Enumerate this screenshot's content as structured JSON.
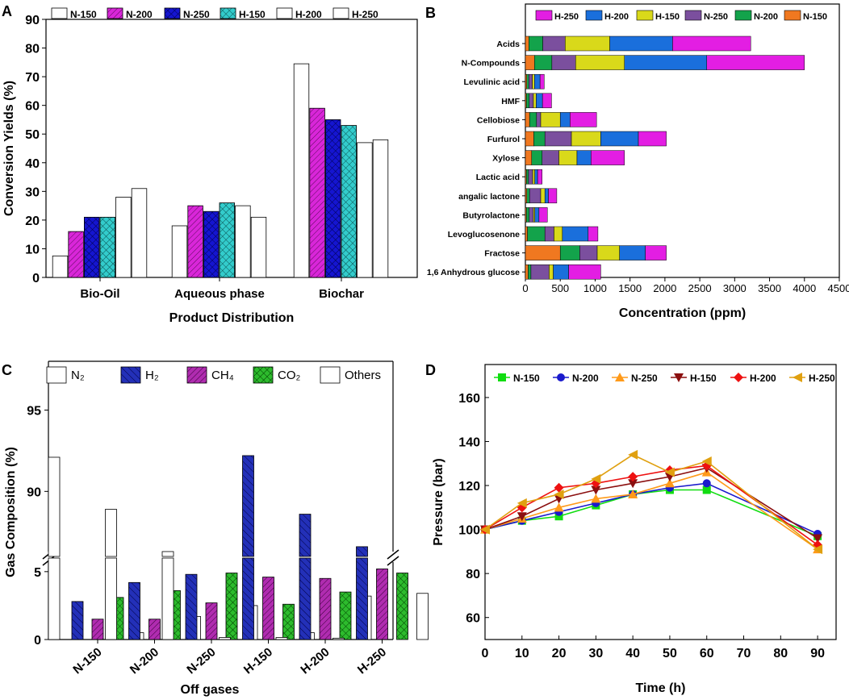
{
  "panel_labels": {
    "a": "A",
    "b": "B",
    "c": "C",
    "d": "D"
  },
  "colors": {
    "magenta": "#d926d9",
    "blue": "#1515d0",
    "teal": "#33cccc",
    "white": "#ffffff",
    "h250": "#e31ee3",
    "h200": "#1a6fdc",
    "h150": "#d9d91a",
    "n250": "#7b4f9e",
    "n200": "#13a34b",
    "n150": "#f07820",
    "N2": "#ffffff",
    "H2": "#2330b8",
    "CH4": "#b02cb0",
    "CO2": "#2dbb2d",
    "Others": "#ffffff",
    "line_n150": "#11dd11",
    "line_n200": "#1a1acc",
    "line_n250": "#ff9a1a",
    "line_h150": "#8b0f0f",
    "line_h200": "#ee1111",
    "line_h250": "#e0a010"
  },
  "chart_data": [
    {
      "panel": "A",
      "type": "bar",
      "title": "",
      "xlabel": "Product Distribution",
      "ylabel": "Conversion Yields (%)",
      "ylim": [
        0,
        90
      ],
      "yticks": [
        "0",
        "10",
        "20",
        "30",
        "40",
        "50",
        "60",
        "70",
        "80",
        "90"
      ],
      "categories": [
        "Bio-Oil",
        "Aqueous phase",
        "Biochar"
      ],
      "series": [
        {
          "name": "N-150",
          "values": [
            7.5,
            18,
            74.5
          ]
        },
        {
          "name": "N-200",
          "values": [
            16,
            25,
            59
          ]
        },
        {
          "name": "N-250",
          "values": [
            21,
            23,
            55
          ]
        },
        {
          "name": "H-150",
          "values": [
            21,
            26,
            53
          ]
        },
        {
          "name": "H-200",
          "values": [
            28,
            25,
            47
          ]
        },
        {
          "name": "H-250",
          "values": [
            31,
            21,
            48
          ]
        }
      ]
    },
    {
      "panel": "B",
      "type": "bar",
      "orientation": "horizontal-stacked",
      "xlabel": "Concentration (ppm)",
      "ylabel": "",
      "xlim": [
        0,
        4500
      ],
      "xticks": [
        "0",
        "500",
        "1000",
        "1500",
        "2000",
        "2500",
        "3000",
        "3500",
        "4000",
        "4500"
      ],
      "categories": [
        "Acids",
        "N-Compounds",
        "Levulinic acid",
        "HMF",
        "Cellobiose",
        "Furfurol",
        "Xylose",
        "Lactic acid",
        "angalic lactone",
        "Butyrolactone",
        "Levoglucosenone",
        "Fractose",
        "1,6 Anhydrous glucose"
      ],
      "legend": [
        "H-250",
        "H-200",
        "H-150",
        "N-250",
        "N-200",
        "N-150"
      ],
      "series": [
        {
          "name": "N-150",
          "values": [
            50,
            130,
            20,
            15,
            60,
            120,
            90,
            15,
            20,
            15,
            30,
            500,
            40
          ]
        },
        {
          "name": "N-200",
          "values": [
            200,
            250,
            30,
            40,
            100,
            160,
            150,
            30,
            40,
            40,
            250,
            280,
            40
          ]
        },
        {
          "name": "N-250",
          "values": [
            320,
            340,
            50,
            60,
            60,
            380,
            240,
            60,
            160,
            60,
            130,
            250,
            260
          ]
        },
        {
          "name": "H-150",
          "values": [
            640,
            700,
            30,
            40,
            280,
            420,
            260,
            30,
            60,
            20,
            120,
            320,
            60
          ]
        },
        {
          "name": "H-200",
          "values": [
            900,
            1180,
            80,
            90,
            140,
            540,
            200,
            40,
            50,
            60,
            370,
            370,
            220
          ]
        },
        {
          "name": "H-250",
          "values": [
            1120,
            1400,
            60,
            130,
            380,
            400,
            480,
            65,
            120,
            120,
            140,
            300,
            460
          ]
        }
      ]
    },
    {
      "panel": "C",
      "type": "bar",
      "xlabel": "Off gases",
      "ylabel": "Gas Composition (%)",
      "axis_break": {
        "lower": [
          0,
          6
        ],
        "upper": [
          86,
          98
        ]
      },
      "yticks_lower": [
        "0",
        "5"
      ],
      "yticks_upper": [
        "90",
        "95"
      ],
      "categories": [
        "N-150",
        "N-200",
        "N-250",
        "H-150",
        "H-200",
        "H-250"
      ],
      "series": [
        {
          "name": "N₂",
          "values": [
            92.1,
            88.9,
            86.3,
            0.15,
            0.15,
            0.1
          ]
        },
        {
          "name": "H₂",
          "values": [
            2.8,
            4.2,
            4.8,
            92.2,
            88.6,
            86.6
          ]
        },
        {
          "name": "CH₄",
          "values": [
            1.5,
            1.5,
            2.7,
            4.6,
            4.5,
            5.2
          ]
        },
        {
          "name": "CO₂",
          "values": [
            3.1,
            3.6,
            4.9,
            2.6,
            3.5,
            4.9
          ]
        },
        {
          "name": "Others",
          "values": [
            0.5,
            1.7,
            2.5,
            0.5,
            3.2,
            3.4
          ]
        }
      ]
    },
    {
      "panel": "D",
      "type": "line",
      "xlabel": "Time (h)",
      "ylabel": "Pressure (bar)",
      "xlim": [
        0,
        95
      ],
      "ylim": [
        50,
        175
      ],
      "xticks": [
        "0",
        "10",
        "20",
        "30",
        "40",
        "50",
        "60",
        "70",
        "80",
        "90"
      ],
      "yticks": [
        "60",
        "80",
        "100",
        "120",
        "140",
        "160"
      ],
      "x": [
        0,
        10,
        20,
        30,
        40,
        50,
        60,
        90
      ],
      "series": [
        {
          "name": "N-150",
          "marker": "square",
          "values": [
            100,
            104,
            106,
            111,
            116,
            118,
            118,
            97
          ]
        },
        {
          "name": "N-200",
          "marker": "circle",
          "values": [
            100,
            104,
            108,
            112,
            116,
            119,
            121,
            98
          ]
        },
        {
          "name": "N-250",
          "marker": "triangle-up",
          "values": [
            100,
            105,
            110,
            114,
            116,
            121,
            126,
            91
          ]
        },
        {
          "name": "H-150",
          "marker": "triangle-down",
          "values": [
            100,
            106,
            114,
            118,
            121,
            124,
            128,
            96
          ]
        },
        {
          "name": "H-200",
          "marker": "diamond",
          "values": [
            100,
            110,
            119,
            121,
            124,
            127,
            129,
            93
          ]
        },
        {
          "name": "H-250",
          "marker": "triangle-left",
          "values": [
            100,
            112,
            116,
            123,
            134,
            126,
            131,
            91
          ]
        }
      ]
    }
  ]
}
